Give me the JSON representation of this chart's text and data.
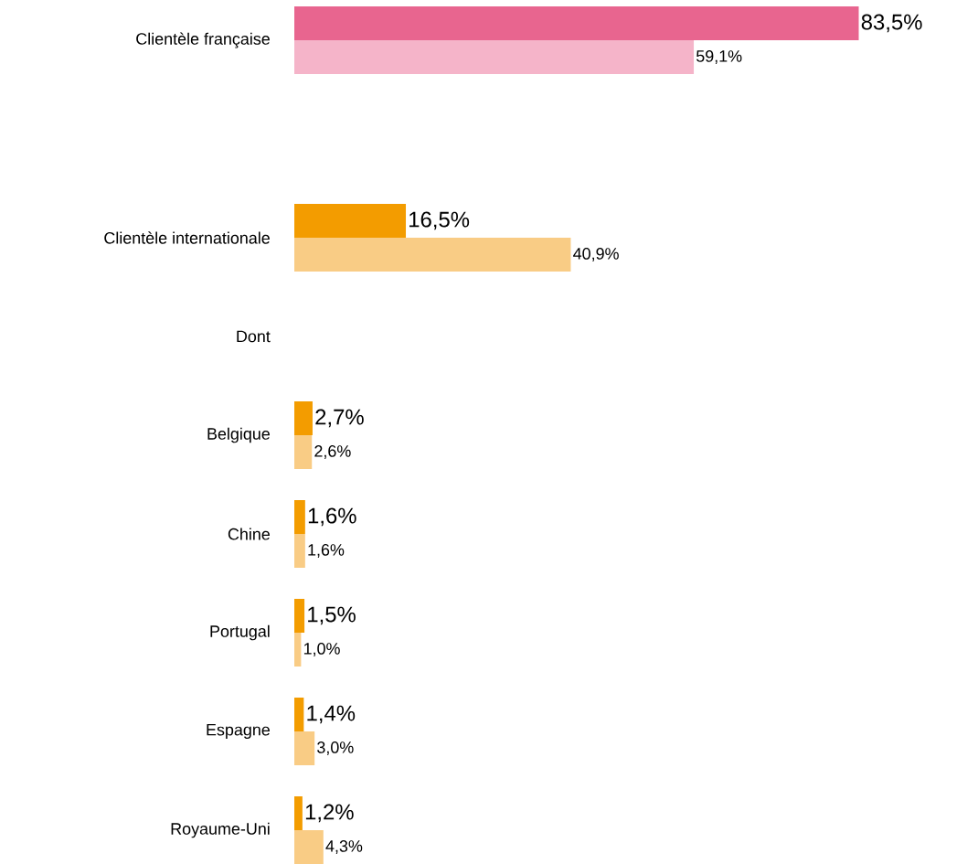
{
  "chart_data": {
    "type": "bar",
    "orientation": "horizontal",
    "tick_labels": "y",
    "categories": [
      "Clientèle française",
      null,
      "Clientèle internationale",
      "Dont",
      "Belgique",
      "Chine",
      "Portugal",
      "Espagne",
      "Royaume-Uni"
    ],
    "series": [
      {
        "colors": [
          "#e8658f",
          null,
          "#f39c00",
          null,
          "#f39c00",
          "#f39c00",
          "#f39c00",
          "#f39c00",
          "#f39c00"
        ],
        "values": [
          83.5,
          null,
          16.5,
          null,
          2.7,
          1.6,
          1.5,
          1.4,
          1.2
        ],
        "value_labels": [
          "83,5%",
          null,
          "16,5%",
          null,
          "2,7%",
          "1,6%",
          "1,5%",
          "1,4%",
          "1,2%"
        ]
      },
      {
        "colors": [
          "#f5b4c9",
          null,
          "#f9cc85",
          null,
          "#f9cc85",
          "#f9cc85",
          "#f9cc85",
          "#f9cc85",
          "#f9cc85"
        ],
        "values": [
          59.1,
          null,
          40.9,
          null,
          2.6,
          1.6,
          1.0,
          3.0,
          4.3
        ],
        "value_labels": [
          "59,1%",
          null,
          "40,9%",
          null,
          "2,6%",
          "1,6%",
          "1,0%",
          "3,0%",
          "4,3%"
        ]
      }
    ]
  }
}
